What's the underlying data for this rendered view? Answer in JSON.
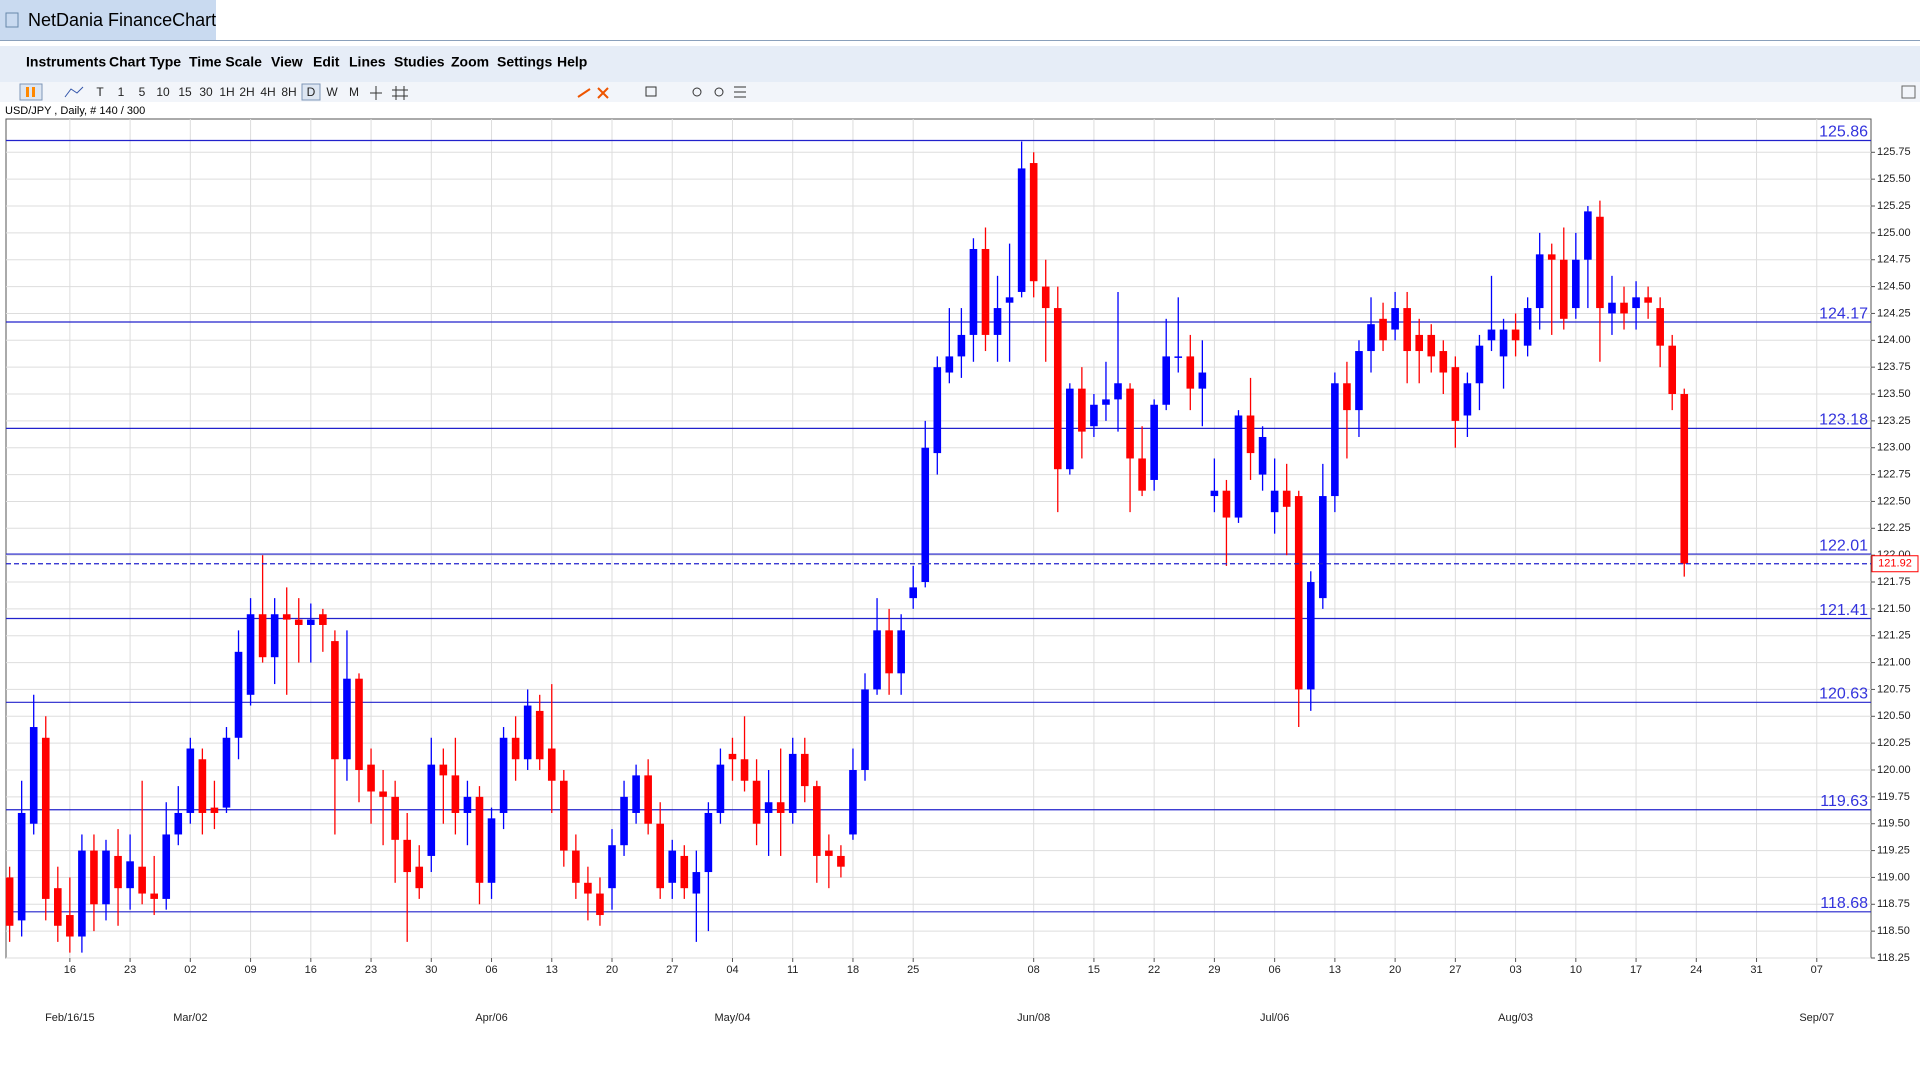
{
  "window_title": "NetDania FinanceChart",
  "menu": [
    "Instruments",
    "Chart Type",
    "Time Scale",
    "View",
    "Edit",
    "Lines",
    "Studies",
    "Zoom",
    "Settings",
    "Help"
  ],
  "toolbar": [
    "T",
    "1",
    "5",
    "10",
    "15",
    "30",
    "1H",
    "2H",
    "4H",
    "8H",
    "D",
    "W",
    "M"
  ],
  "chart_data": {
    "type": "candlestick",
    "title": "USD/JPY , Daily, # 140 / 300",
    "series": [
      {
        "name": "USD/JPY",
        "up_color": "#0000ff",
        "down_color": "#ff0000",
        "open": [
          119.0,
          118.6,
          119.5,
          120.3,
          118.9,
          118.65,
          118.45,
          119.25,
          118.75,
          119.2,
          118.9,
          119.1,
          118.85,
          118.8,
          119.4,
          119.6,
          120.1,
          119.65,
          119.65,
          120.3,
          120.7,
          121.45,
          121.05,
          121.45,
          121.4,
          121.35,
          121.45,
          121.2,
          120.1,
          120.85,
          120.05,
          119.8,
          119.75,
          119.35,
          119.1,
          119.2,
          120.05,
          119.95,
          119.6,
          119.75,
          118.95,
          119.6,
          120.3,
          120.1,
          120.55,
          120.2,
          119.9,
          119.25,
          118.95,
          118.85,
          118.9,
          119.3,
          119.6,
          119.95,
          119.5,
          118.95,
          119.2,
          118.85,
          119.05,
          119.6,
          120.15,
          120.1,
          119.9,
          119.6,
          119.7,
          119.6,
          120.15,
          119.85,
          119.25,
          119.2,
          119.4,
          120.0,
          120.75,
          121.3,
          120.9,
          121.6,
          121.75,
          122.95,
          123.7,
          123.85,
          124.05,
          124.85,
          124.05,
          124.35,
          124.45,
          125.65,
          124.5,
          124.3,
          122.8,
          123.55,
          123.2,
          123.4,
          123.45,
          123.55,
          122.9,
          122.7,
          123.4,
          123.85,
          123.85,
          123.55,
          122.55,
          122.6,
          122.35,
          123.3,
          122.75,
          122.4,
          122.6,
          122.55,
          120.75,
          121.6,
          122.55,
          123.6,
          123.35,
          123.9,
          124.2,
          124.1,
          124.3,
          124.05,
          124.05,
          123.9,
          123.75,
          123.3,
          123.6,
          124.0,
          123.85,
          124.1,
          123.95,
          124.3,
          124.8,
          124.75,
          124.3,
          124.75,
          125.15,
          124.25,
          124.35,
          124.3,
          124.4,
          124.3,
          123.95,
          123.5
        ],
        "high": [
          119.1,
          119.9,
          120.7,
          120.5,
          119.1,
          119.0,
          119.4,
          119.4,
          119.35,
          119.45,
          119.4,
          119.9,
          119.2,
          119.7,
          119.85,
          120.3,
          120.2,
          119.9,
          120.4,
          121.3,
          121.6,
          122.0,
          121.6,
          121.7,
          121.6,
          121.55,
          121.5,
          121.3,
          121.3,
          120.9,
          120.2,
          120.0,
          119.9,
          119.6,
          119.3,
          120.3,
          120.2,
          120.3,
          119.9,
          119.85,
          119.65,
          120.4,
          120.5,
          120.75,
          120.7,
          120.8,
          120.0,
          119.4,
          119.1,
          119.0,
          119.45,
          119.9,
          120.05,
          120.1,
          119.7,
          119.35,
          119.3,
          119.25,
          119.7,
          120.2,
          120.3,
          120.5,
          120.1,
          120.0,
          120.2,
          120.3,
          120.3,
          119.9,
          119.4,
          119.3,
          120.2,
          120.9,
          121.6,
          121.5,
          121.45,
          121.9,
          123.25,
          123.85,
          124.3,
          124.3,
          124.95,
          125.05,
          124.6,
          124.9,
          125.85,
          125.75,
          124.75,
          124.5,
          123.6,
          123.75,
          123.5,
          123.8,
          124.45,
          123.6,
          123.2,
          123.45,
          124.2,
          124.4,
          124.05,
          124.0,
          122.9,
          122.7,
          123.35,
          123.65,
          123.2,
          122.9,
          122.85,
          122.6,
          121.85,
          122.85,
          123.7,
          123.8,
          124.0,
          124.4,
          124.35,
          124.45,
          124.45,
          124.2,
          124.15,
          124.0,
          123.85,
          123.7,
          124.05,
          124.6,
          124.2,
          124.25,
          124.4,
          125.0,
          124.9,
          125.05,
          125.0,
          125.25,
          125.3,
          124.6,
          124.5,
          124.55,
          124.5,
          124.4,
          124.05,
          123.55
        ],
        "low": [
          118.4,
          118.45,
          119.4,
          118.6,
          118.4,
          118.3,
          118.3,
          118.5,
          118.6,
          118.55,
          118.7,
          118.75,
          118.65,
          118.7,
          119.3,
          119.5,
          119.4,
          119.45,
          119.6,
          120.1,
          120.6,
          121.0,
          120.8,
          120.7,
          121.0,
          121.0,
          121.1,
          119.4,
          119.9,
          119.7,
          119.5,
          119.3,
          118.95,
          118.4,
          118.8,
          119.05,
          119.5,
          119.4,
          119.3,
          118.75,
          118.8,
          119.45,
          119.9,
          120.0,
          120.0,
          119.6,
          119.1,
          118.8,
          118.6,
          118.55,
          118.7,
          119.2,
          119.5,
          119.4,
          118.8,
          118.8,
          118.8,
          118.4,
          118.5,
          119.5,
          119.9,
          119.8,
          119.3,
          119.2,
          119.2,
          119.5,
          119.7,
          118.95,
          118.9,
          119.0,
          119.35,
          119.9,
          120.7,
          120.7,
          120.7,
          121.5,
          121.7,
          122.75,
          123.6,
          123.65,
          123.8,
          123.9,
          123.8,
          123.8,
          124.4,
          124.4,
          123.8,
          122.4,
          122.75,
          122.9,
          123.1,
          123.25,
          123.15,
          122.4,
          122.55,
          122.6,
          123.35,
          123.7,
          123.35,
          123.2,
          122.4,
          121.9,
          122.3,
          122.7,
          122.6,
          122.2,
          122.0,
          120.4,
          120.55,
          121.5,
          122.4,
          122.9,
          123.1,
          123.7,
          123.9,
          124.0,
          123.6,
          123.6,
          123.7,
          123.5,
          123.0,
          123.1,
          123.35,
          123.9,
          123.55,
          123.85,
          123.85,
          124.1,
          124.05,
          124.1,
          124.2,
          124.3,
          123.8,
          124.05,
          124.1,
          124.1,
          124.2,
          123.75,
          123.35,
          121.8
        ],
        "close": [
          118.55,
          119.6,
          120.4,
          118.8,
          118.55,
          118.45,
          119.25,
          118.75,
          119.25,
          118.9,
          119.15,
          118.85,
          118.8,
          119.4,
          119.6,
          120.2,
          119.6,
          119.6,
          120.3,
          121.1,
          121.45,
          121.05,
          121.45,
          121.4,
          121.35,
          121.4,
          121.35,
          120.1,
          120.85,
          120.0,
          119.8,
          119.75,
          119.35,
          119.05,
          118.9,
          120.05,
          119.95,
          119.6,
          119.75,
          118.95,
          119.55,
          120.3,
          120.1,
          120.6,
          120.1,
          119.9,
          119.25,
          118.95,
          118.85,
          118.65,
          119.3,
          119.75,
          119.95,
          119.5,
          118.9,
          119.25,
          118.9,
          119.05,
          119.6,
          120.05,
          120.1,
          119.9,
          119.5,
          119.7,
          119.6,
          120.15,
          119.85,
          119.2,
          119.2,
          119.1,
          120.0,
          120.75,
          121.3,
          120.9,
          121.3,
          121.7,
          123.0,
          123.75,
          123.85,
          124.05,
          124.85,
          124.05,
          124.3,
          124.4,
          125.6,
          124.55,
          124.3,
          122.8,
          123.55,
          123.15,
          123.4,
          123.45,
          123.6,
          122.9,
          122.6,
          123.4,
          123.85,
          123.85,
          123.55,
          123.7,
          122.6,
          122.35,
          123.3,
          122.95,
          123.1,
          122.6,
          122.45,
          120.75,
          121.75,
          122.55,
          123.6,
          123.35,
          123.9,
          124.15,
          124.0,
          124.3,
          123.9,
          123.9,
          123.85,
          123.7,
          123.25,
          123.6,
          123.95,
          124.1,
          124.1,
          124.0,
          124.3,
          124.8,
          124.75,
          124.2,
          124.75,
          125.2,
          124.3,
          124.35,
          124.25,
          124.4,
          124.35,
          123.95,
          123.5,
          121.92
        ]
      }
    ],
    "levels": [
      125.86,
      124.17,
      123.18,
      122.01,
      121.41,
      120.63,
      119.63,
      118.68
    ],
    "level_color": "#2222cc",
    "current_price": 121.92,
    "current_color": "#ff0000",
    "xlim": [
      -0.3,
      154.5
    ],
    "xticks": [
      {
        "value": 5,
        "label": "16",
        "month": "Feb/16/15"
      },
      {
        "value": 10,
        "label": "23"
      },
      {
        "value": 15,
        "label": "02",
        "month": "Mar/02"
      },
      {
        "value": 20,
        "label": "09"
      },
      {
        "value": 25,
        "label": "16"
      },
      {
        "value": 30,
        "label": "23"
      },
      {
        "value": 35,
        "label": "30"
      },
      {
        "value": 40,
        "label": "06",
        "month": "Apr/06"
      },
      {
        "value": 45,
        "label": "13"
      },
      {
        "value": 50,
        "label": "20"
      },
      {
        "value": 55,
        "label": "27"
      },
      {
        "value": 60,
        "label": "04",
        "month": "May/04"
      },
      {
        "value": 65,
        "label": "11"
      },
      {
        "value": 70,
        "label": "18"
      },
      {
        "value": 75,
        "label": "25"
      },
      {
        "value": 85,
        "label": "08",
        "month": "Jun/08"
      },
      {
        "value": 90,
        "label": "15"
      },
      {
        "value": 95,
        "label": "22"
      },
      {
        "value": 100,
        "label": "29"
      },
      {
        "value": 105,
        "label": "06",
        "month": "Jul/06"
      },
      {
        "value": 110,
        "label": "13"
      },
      {
        "value": 115,
        "label": "20"
      },
      {
        "value": 120,
        "label": "27"
      },
      {
        "value": 125,
        "label": "03",
        "month": "Aug/03"
      },
      {
        "value": 130,
        "label": "10"
      },
      {
        "value": 135,
        "label": "17"
      },
      {
        "value": 140,
        "label": "24"
      },
      {
        "value": 145,
        "label": "31"
      },
      {
        "value": 150,
        "label": "07",
        "month": "Sep/07"
      }
    ],
    "ylim": [
      118.25,
      126.06
    ],
    "yticks": [
      118.25,
      {
        "value": 118.5,
        "label": "118.50"
      },
      118.75,
      {
        "value": 119,
        "label": "119.00"
      },
      119.25,
      {
        "value": 119.5,
        "label": "119.50"
      },
      119.75,
      {
        "value": 120,
        "label": "120.00"
      },
      120.25,
      {
        "value": 120.5,
        "label": "120.50"
      },
      120.75,
      {
        "value": 121,
        "label": "121.00"
      },
      121.25,
      {
        "value": 121.5,
        "label": "121.50"
      },
      121.75,
      {
        "value": 122,
        "label": "122.00"
      },
      122.25,
      {
        "value": 122.5,
        "label": "122.50"
      },
      122.75,
      {
        "value": 123,
        "label": "123.00"
      },
      123.25,
      {
        "value": 123.5,
        "label": "123.50"
      },
      123.75,
      {
        "value": 124,
        "label": "124.00"
      },
      124.25,
      {
        "value": 124.5,
        "label": "124.50"
      },
      124.75,
      {
        "value": 125,
        "label": "125.00"
      },
      125.25,
      {
        "value": 125.5,
        "label": "125.50"
      },
      125.75
    ],
    "grid": true
  }
}
